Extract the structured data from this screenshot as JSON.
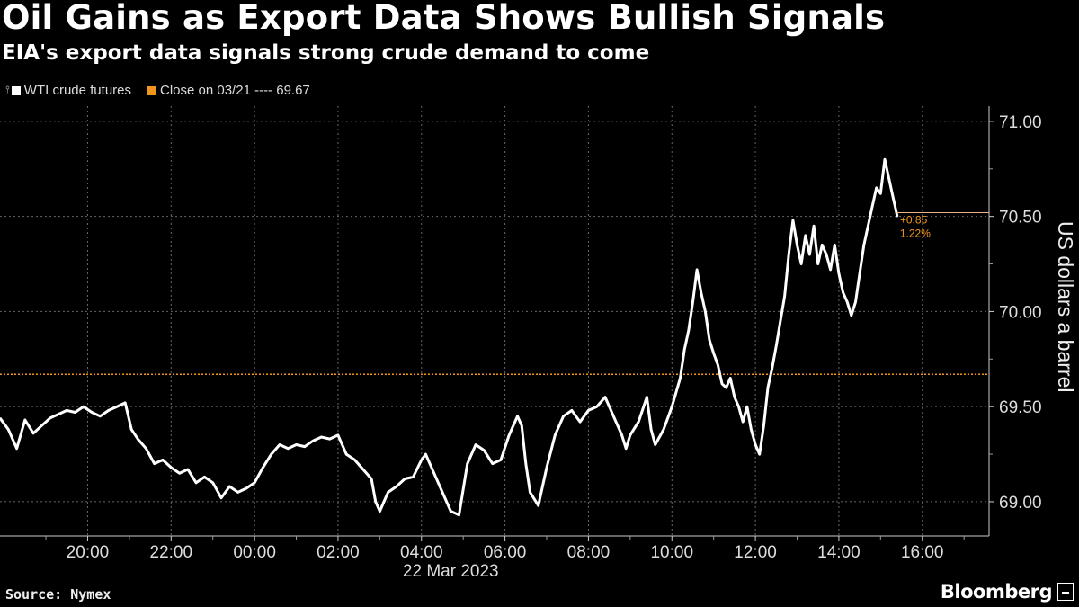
{
  "header": {
    "title": "Oil Gains as Export Data Shows Bullish Signals",
    "subtitle": "EIA's export data signals strong crude demand to come"
  },
  "legend": {
    "series_label": "WTI crude futures",
    "reference_label": "Close on 03/21 ---- 69.67"
  },
  "footer": {
    "source": "Source: Nymex",
    "brand": "Bloomberg"
  },
  "colors": {
    "background": "#000000",
    "series": "#ffffff",
    "reference": "#f0961e",
    "grid": "#666666"
  },
  "chart_data": {
    "type": "line",
    "title": "Oil Gains as Export Data Shows Bullish Signals",
    "subtitle": "EIA's export data signals strong crude demand to come",
    "ylabel": "US dollars a barrel",
    "xlabel": "22 Mar 2023",
    "x_unit": "hours relative to 00:00 on 22 Mar 2023",
    "xlim": [
      -6.1,
      17.6
    ],
    "ylim": [
      68.82,
      71.08
    ],
    "x_ticks": [
      -4,
      -2,
      0,
      2,
      4,
      6,
      8,
      10,
      12,
      14,
      16
    ],
    "x_tick_labels": [
      "20:00",
      "22:00",
      "00:00",
      "02:00",
      "04:00",
      "06:00",
      "08:00",
      "10:00",
      "12:00",
      "14:00",
      "16:00"
    ],
    "y_ticks": [
      69.0,
      69.5,
      70.0,
      70.5,
      71.0
    ],
    "y_tick_labels": [
      "69.00",
      "69.50",
      "70.00",
      "70.50",
      "71.00"
    ],
    "grid": true,
    "legend_position": "top-left",
    "reference_line": {
      "label": "Close on 03/21",
      "value": 69.67
    },
    "last_value_line": 70.52,
    "annotations": [
      "+0.85",
      "1.22%"
    ],
    "series": [
      {
        "name": "WTI crude futures",
        "points": [
          [
            -6.1,
            69.44
          ],
          [
            -5.9,
            69.38
          ],
          [
            -5.7,
            69.28
          ],
          [
            -5.5,
            69.43
          ],
          [
            -5.3,
            69.36
          ],
          [
            -5.1,
            69.4
          ],
          [
            -4.9,
            69.44
          ],
          [
            -4.7,
            69.46
          ],
          [
            -4.5,
            69.48
          ],
          [
            -4.3,
            69.47
          ],
          [
            -4.1,
            69.5
          ],
          [
            -3.9,
            69.47
          ],
          [
            -3.7,
            69.45
          ],
          [
            -3.5,
            69.48
          ],
          [
            -3.3,
            69.5
          ],
          [
            -3.1,
            69.52
          ],
          [
            -2.95,
            69.38
          ],
          [
            -2.8,
            69.33
          ],
          [
            -2.6,
            69.28
          ],
          [
            -2.4,
            69.2
          ],
          [
            -2.2,
            69.22
          ],
          [
            -2.0,
            69.18
          ],
          [
            -1.8,
            69.15
          ],
          [
            -1.6,
            69.17
          ],
          [
            -1.4,
            69.1
          ],
          [
            -1.2,
            69.13
          ],
          [
            -1.0,
            69.1
          ],
          [
            -0.9,
            69.06
          ],
          [
            -0.8,
            69.02
          ],
          [
            -0.6,
            69.08
          ],
          [
            -0.4,
            69.05
          ],
          [
            -0.2,
            69.07
          ],
          [
            0.0,
            69.1
          ],
          [
            0.2,
            69.18
          ],
          [
            0.4,
            69.25
          ],
          [
            0.6,
            69.3
          ],
          [
            0.8,
            69.28
          ],
          [
            1.0,
            69.3
          ],
          [
            1.2,
            69.29
          ],
          [
            1.4,
            69.32
          ],
          [
            1.6,
            69.34
          ],
          [
            1.8,
            69.33
          ],
          [
            2.0,
            69.35
          ],
          [
            2.2,
            69.25
          ],
          [
            2.4,
            69.22
          ],
          [
            2.6,
            69.17
          ],
          [
            2.8,
            69.12
          ],
          [
            2.9,
            69.0
          ],
          [
            3.0,
            68.95
          ],
          [
            3.2,
            69.05
          ],
          [
            3.4,
            69.08
          ],
          [
            3.6,
            69.12
          ],
          [
            3.8,
            69.13
          ],
          [
            4.0,
            69.22
          ],
          [
            4.1,
            69.25
          ],
          [
            4.3,
            69.15
          ],
          [
            4.5,
            69.05
          ],
          [
            4.7,
            68.95
          ],
          [
            4.9,
            68.93
          ],
          [
            5.1,
            69.2
          ],
          [
            5.3,
            69.3
          ],
          [
            5.5,
            69.27
          ],
          [
            5.7,
            69.2
          ],
          [
            5.9,
            69.22
          ],
          [
            6.1,
            69.35
          ],
          [
            6.3,
            69.45
          ],
          [
            6.4,
            69.4
          ],
          [
            6.5,
            69.2
          ],
          [
            6.6,
            69.05
          ],
          [
            6.8,
            68.98
          ],
          [
            7.0,
            69.18
          ],
          [
            7.2,
            69.35
          ],
          [
            7.4,
            69.45
          ],
          [
            7.6,
            69.48
          ],
          [
            7.8,
            69.42
          ],
          [
            8.0,
            69.48
          ],
          [
            8.2,
            69.5
          ],
          [
            8.4,
            69.55
          ],
          [
            8.6,
            69.45
          ],
          [
            8.8,
            69.35
          ],
          [
            8.9,
            69.28
          ],
          [
            9.0,
            69.35
          ],
          [
            9.2,
            69.42
          ],
          [
            9.4,
            69.55
          ],
          [
            9.5,
            69.38
          ],
          [
            9.6,
            69.3
          ],
          [
            9.8,
            69.38
          ],
          [
            10.0,
            69.5
          ],
          [
            10.2,
            69.65
          ],
          [
            10.3,
            69.8
          ],
          [
            10.4,
            69.9
          ],
          [
            10.5,
            70.05
          ],
          [
            10.6,
            70.22
          ],
          [
            10.7,
            70.1
          ],
          [
            10.8,
            70.0
          ],
          [
            10.9,
            69.85
          ],
          [
            11.0,
            69.78
          ],
          [
            11.1,
            69.72
          ],
          [
            11.2,
            69.62
          ],
          [
            11.3,
            69.6
          ],
          [
            11.4,
            69.65
          ],
          [
            11.5,
            69.55
          ],
          [
            11.6,
            69.5
          ],
          [
            11.7,
            69.42
          ],
          [
            11.8,
            69.5
          ],
          [
            11.9,
            69.38
          ],
          [
            12.0,
            69.3
          ],
          [
            12.1,
            69.25
          ],
          [
            12.2,
            69.4
          ],
          [
            12.3,
            69.6
          ],
          [
            12.4,
            69.7
          ],
          [
            12.5,
            69.82
          ],
          [
            12.6,
            69.95
          ],
          [
            12.7,
            70.08
          ],
          [
            12.8,
            70.3
          ],
          [
            12.9,
            70.48
          ],
          [
            13.0,
            70.35
          ],
          [
            13.1,
            70.25
          ],
          [
            13.2,
            70.4
          ],
          [
            13.3,
            70.3
          ],
          [
            13.4,
            70.45
          ],
          [
            13.5,
            70.25
          ],
          [
            13.6,
            70.35
          ],
          [
            13.7,
            70.3
          ],
          [
            13.8,
            70.22
          ],
          [
            13.9,
            70.35
          ],
          [
            14.0,
            70.2
          ],
          [
            14.1,
            70.1
          ],
          [
            14.2,
            70.05
          ],
          [
            14.3,
            69.98
          ],
          [
            14.4,
            70.05
          ],
          [
            14.5,
            70.2
          ],
          [
            14.6,
            70.35
          ],
          [
            14.7,
            70.45
          ],
          [
            14.8,
            70.55
          ],
          [
            14.9,
            70.65
          ],
          [
            15.0,
            70.62
          ],
          [
            15.1,
            70.8
          ],
          [
            15.2,
            70.7
          ],
          [
            15.3,
            70.6
          ],
          [
            15.35,
            70.55
          ],
          [
            15.4,
            70.5
          ]
        ]
      }
    ]
  }
}
